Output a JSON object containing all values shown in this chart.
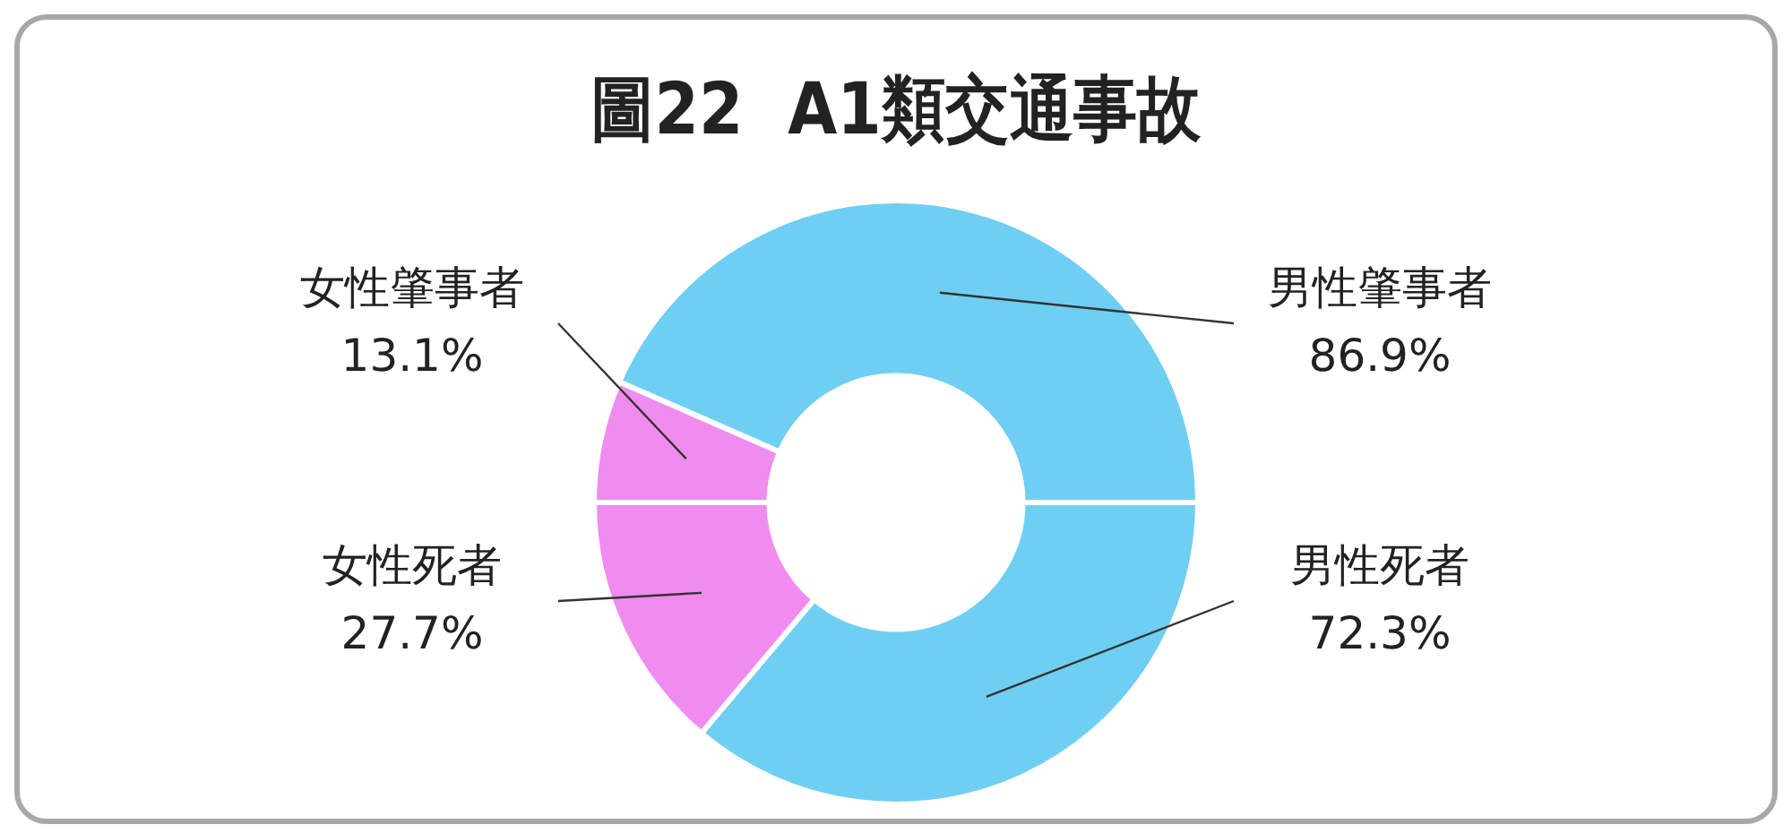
{
  "chart_data": {
    "type": "donut",
    "title": "圖22  A1類交通事故",
    "categories": [
      "女性肇事者",
      "男性肇事者",
      "男性死者",
      "女性死者"
    ],
    "values": [
      13.1,
      86.9,
      72.3,
      27.7
    ],
    "value_labels": [
      "13.1%",
      "86.9%",
      "72.3%",
      "27.7%"
    ],
    "colors": [
      "#f08cf0",
      "#6fcff2",
      "#6fcff2",
      "#f08cf0"
    ],
    "legend": false
  }
}
